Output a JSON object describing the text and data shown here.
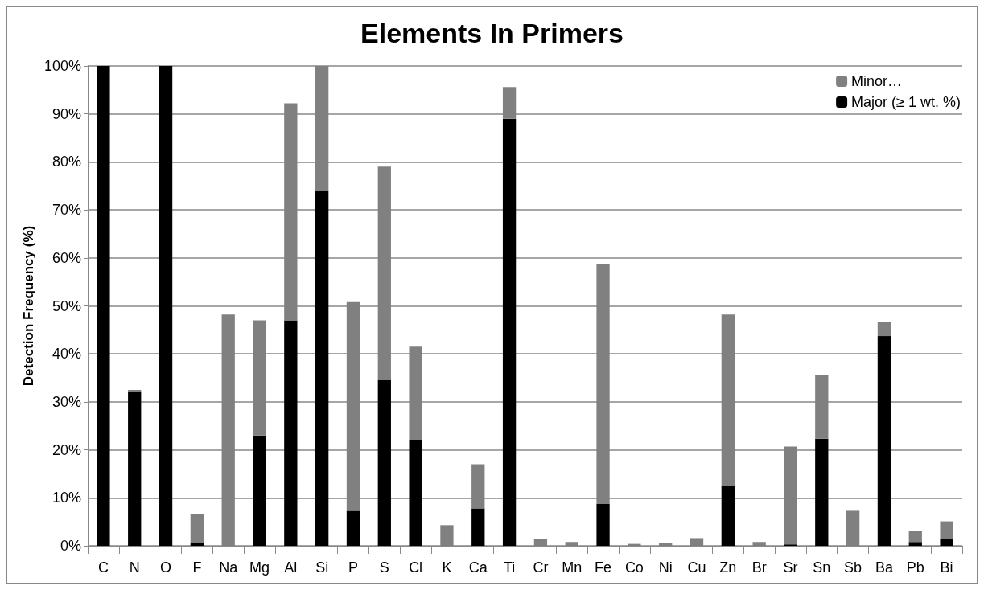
{
  "chart_data": {
    "type": "bar",
    "title": "Elements In Primers",
    "ylabel": "Detection Frequency (%)",
    "categories": [
      "C",
      "N",
      "O",
      "F",
      "Na",
      "Mg",
      "Al",
      "Si",
      "P",
      "S",
      "Cl",
      "K",
      "Ca",
      "Ti",
      "Cr",
      "Mn",
      "Fe",
      "Co",
      "Ni",
      "Cu",
      "Zn",
      "Br",
      "Sr",
      "Sn",
      "Sb",
      "Ba",
      "Pb",
      "Bi"
    ],
    "stacked": true,
    "series": [
      {
        "name": "Major (≥ 1 wt. %)",
        "color": "#000000",
        "values": [
          100,
          32,
          100,
          0.5,
          0,
          23,
          47,
          74,
          7.3,
          34.5,
          22,
          0,
          7.8,
          89,
          0,
          0,
          8.7,
          0,
          0,
          0,
          12.5,
          0,
          0.3,
          22.3,
          0,
          43.7,
          0.8,
          1.4
        ]
      },
      {
        "name": "Minor…",
        "color": "#808080",
        "values": [
          0,
          0.5,
          0,
          6.2,
          48.2,
          24,
          45.2,
          26,
          43.5,
          44.5,
          19.5,
          4.3,
          9.2,
          6.6,
          1.4,
          0.8,
          50.1,
          0.4,
          0.6,
          1.6,
          35.7,
          0.8,
          20.4,
          13.3,
          7.3,
          2.9,
          2.3,
          3.7
        ]
      }
    ],
    "ylim": [
      0,
      100
    ],
    "yticks": [
      {
        "value": 0,
        "label": "0%"
      },
      {
        "value": 10,
        "label": "10%"
      },
      {
        "value": 20,
        "label": "20%"
      },
      {
        "value": 30,
        "label": "30%"
      },
      {
        "value": 40,
        "label": "40%"
      },
      {
        "value": 50,
        "label": "50%"
      },
      {
        "value": 60,
        "label": "60%"
      },
      {
        "value": 70,
        "label": "70%"
      },
      {
        "value": 80,
        "label": "80%"
      },
      {
        "value": 90,
        "label": "90%"
      },
      {
        "value": 100,
        "label": "100%"
      }
    ],
    "grid": "y",
    "legend": "top right"
  }
}
